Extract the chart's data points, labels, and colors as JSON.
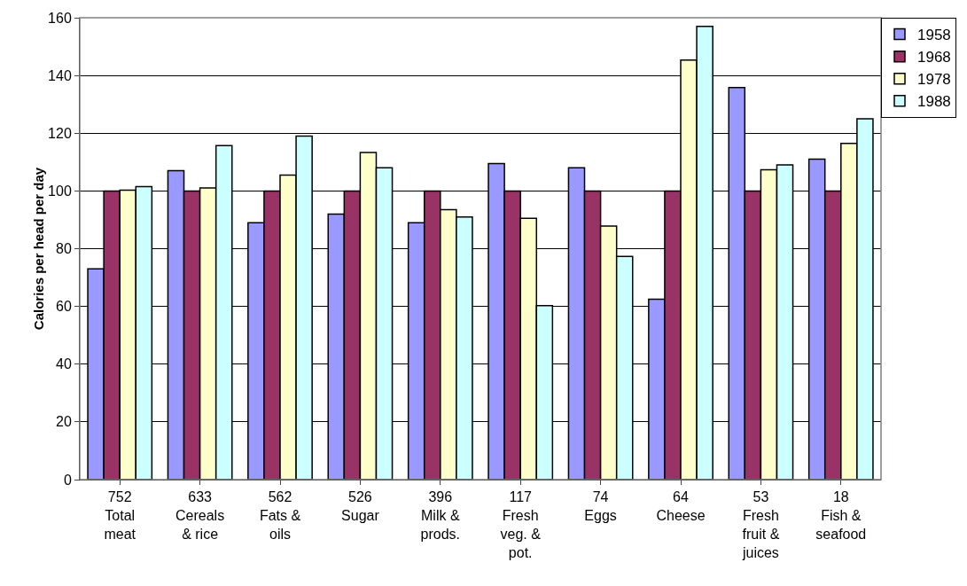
{
  "chart_data": {
    "type": "bar",
    "ylabel": "Calories per head per day",
    "categories": [
      "752\nTotal\nmeat",
      "633\nCereals\n& rice",
      "562\nFats &\noils",
      "526\nSugar",
      "396\nMilk &\nprods.",
      "117\nFresh\nveg. &\npot.",
      "74\nEggs",
      "64\nCheese",
      "53\nFresh\nfruit &\njuices",
      "18\nFish &\nseafood"
    ],
    "series": [
      {
        "name": "1958",
        "color": "#9999ff",
        "values": [
          73,
          107,
          89,
          92,
          89,
          109.5,
          108,
          62.5,
          135.8,
          111
        ]
      },
      {
        "name": "1968",
        "color": "#993366",
        "values": [
          100,
          100,
          100,
          100,
          100,
          100,
          100,
          100,
          100,
          100
        ]
      },
      {
        "name": "1978",
        "color": "#ffffcc",
        "values": [
          100.3,
          101,
          105.5,
          113.3,
          93.5,
          90.5,
          87.8,
          145.3,
          107.3,
          116.5
        ]
      },
      {
        "name": "1988",
        "color": "#ccffff",
        "values": [
          101.5,
          115.7,
          119,
          108,
          91,
          60.3,
          77.3,
          157,
          109,
          125
        ]
      }
    ],
    "ylim": [
      0,
      160
    ],
    "yticks": [
      0,
      20,
      40,
      60,
      80,
      100,
      120,
      140,
      160
    ],
    "grid": "y",
    "legend": "top right"
  }
}
